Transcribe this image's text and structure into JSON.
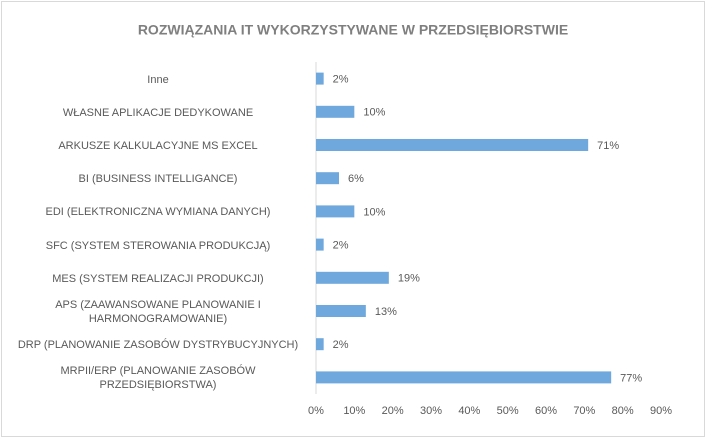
{
  "chart_data": {
    "type": "bar",
    "orientation": "horizontal",
    "title": "ROZWIĄZANIA IT WYKORZYSTYWANE W PRZEDSIĘBIORSTWIE",
    "categories": [
      "Inne",
      "WŁASNE APLIKACJE DEDYKOWANE",
      "ARKUSZE KALKULACYJNE MS EXCEL",
      "BI (BUSINESS INTELLIGANCE)",
      "EDI (ELEKTRONICZNA WYMIANA DANYCH)",
      "SFC (SYSTEM STEROWANIA PRODUKCJĄ)",
      "MES (SYSTEM REALIZACJI PRODUKCJI)",
      "APS (ZAAWANSOWANE PLANOWANIE I HARMONOGRAMOWANIE)",
      "DRP (PLANOWANIE ZASOBÓW DYSTRYBUCYJNYCH)",
      "MRPII/ERP (PLANOWANIE ZASOBÓW PRZEDSIĘBIORSTWA)"
    ],
    "values": [
      2,
      10,
      71,
      6,
      10,
      2,
      19,
      13,
      2,
      77
    ],
    "value_labels": [
      "2%",
      "10%",
      "71%",
      "6%",
      "10%",
      "2%",
      "19%",
      "13%",
      "2%",
      "77%"
    ],
    "color": "#6fa8dc",
    "xlim": [
      0,
      90
    ],
    "xticks": [
      {
        "value": 0,
        "label": "0%"
      },
      {
        "value": 10,
        "label": "10%"
      },
      {
        "value": 20,
        "label": "20%"
      },
      {
        "value": 30,
        "label": "30%"
      },
      {
        "value": 40,
        "label": "40%"
      },
      {
        "value": 50,
        "label": "50%"
      },
      {
        "value": 60,
        "label": "60%"
      },
      {
        "value": 70,
        "label": "70%"
      },
      {
        "value": 80,
        "label": "80%"
      },
      {
        "value": 90,
        "label": "90%"
      }
    ],
    "grid": false
  }
}
